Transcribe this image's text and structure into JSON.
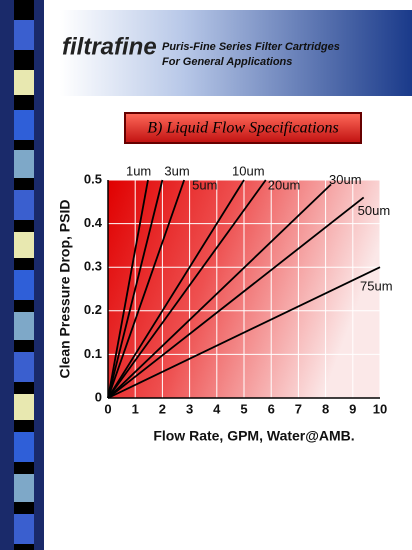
{
  "header": {
    "logo": "filtrafine",
    "line1": "Puris-Fine Series Filter Cartridges",
    "line2": "For General Applications"
  },
  "chart_data": {
    "type": "line",
    "title": "B) Liquid Flow Specifications",
    "x_label": "Flow Rate, GPM, Water@AMB.",
    "y_label": "Clean Pressure Drop, PSID",
    "xlim": [
      0,
      10
    ],
    "ylim": [
      0,
      0.5
    ],
    "xticks": [
      0,
      1,
      2,
      3,
      4,
      5,
      6,
      7,
      8,
      9,
      10
    ],
    "yticks": [
      0,
      0.1,
      0.2,
      0.3,
      0.4,
      0.5
    ],
    "grid": true,
    "series": [
      {
        "name": "1um",
        "color": "#000000",
        "x": [
          0,
          1.47
        ],
        "values": [
          0,
          0.5
        ]
      },
      {
        "name": "3um",
        "color": "#000000",
        "x": [
          0,
          2.0
        ],
        "values": [
          0,
          0.5
        ]
      },
      {
        "name": "5um",
        "color": "#000000",
        "x": [
          0,
          2.8
        ],
        "values": [
          0,
          0.5
        ]
      },
      {
        "name": "10um",
        "color": "#000000",
        "x": [
          0,
          5.0
        ],
        "values": [
          0,
          0.5
        ]
      },
      {
        "name": "20um",
        "color": "#000000",
        "x": [
          0,
          5.8
        ],
        "values": [
          0,
          0.5
        ]
      },
      {
        "name": "30um",
        "color": "#000000",
        "x": [
          0,
          8.2
        ],
        "values": [
          0,
          0.49
        ]
      },
      {
        "name": "50um",
        "color": "#000000",
        "x": [
          0,
          9.4
        ],
        "values": [
          0,
          0.46
        ]
      },
      {
        "name": "75um",
        "color": "#000000",
        "x": [
          0,
          10
        ],
        "values": [
          0,
          0.3
        ]
      }
    ]
  }
}
